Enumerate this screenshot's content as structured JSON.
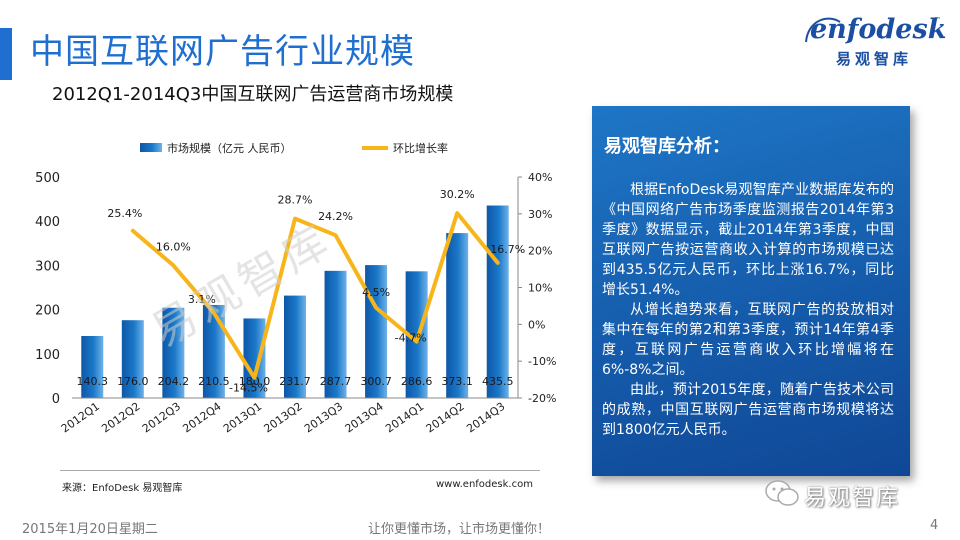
{
  "page": {
    "title": "中国互联网广告行业规模",
    "logo_word": "enfodesk",
    "logo_tm": "™",
    "logo_cn": "易观智库"
  },
  "chart_data": {
    "type": "bar",
    "title": "2012Q1-2014Q3中国互联网广告运营商市场规模",
    "categories": [
      "2012Q1",
      "2012Q2",
      "2012Q3",
      "2012Q4",
      "2013Q1",
      "2013Q2",
      "2013Q3",
      "2013Q4",
      "2014Q1",
      "2014Q2",
      "2014Q3"
    ],
    "series": [
      {
        "name": "市场规模（亿元 人民币）",
        "type": "bar",
        "axis": "left",
        "values": [
          140.3,
          176.0,
          204.2,
          210.5,
          180.0,
          231.7,
          287.7,
          300.7,
          286.6,
          373.1,
          435.5
        ],
        "labels": [
          "140.3",
          "176.0",
          "204.2",
          "210.5",
          "180.0",
          "231.7",
          "287.7",
          "300.7",
          "286.6",
          "373.1",
          "435.5"
        ],
        "color": "#1b78c8"
      },
      {
        "name": "环比增长率",
        "type": "line",
        "axis": "right",
        "values": [
          null,
          25.4,
          16.0,
          3.1,
          -14.5,
          28.7,
          24.2,
          4.5,
          -4.7,
          30.2,
          16.7
        ],
        "labels": [
          null,
          "25.4%",
          "16.0%",
          "3.1%",
          "-14.5%",
          "28.7%",
          "24.2%",
          "4.5%",
          "-4.7%",
          "30.2%",
          "16.7%"
        ],
        "color": "#f7b51b"
      }
    ],
    "ylim": [
      0,
      500
    ],
    "yticks": [
      "0",
      "100",
      "200",
      "300",
      "400",
      "500"
    ],
    "y2lim": [
      -20,
      40
    ],
    "y2ticks": [
      "-20%",
      "-10%",
      "0%",
      "10%",
      "20%",
      "30%",
      "40%"
    ],
    "legend": "top",
    "grid": false
  },
  "watermark": "易观智库",
  "source": "来源：EnfoDesk 易观智库",
  "site": "www.enfodesk.com",
  "panel": {
    "title": "易观智库分析：",
    "paragraphs": [
      "根据EnfoDesk易观智库产业数据库发布的《中国网络广告市场季度监测报告2014年第3季度》数据显示，截止2014年第3季度，中国互联网广告按运营商收入计算的市场规模已达到435.5亿元人民币，环比上涨16.7%，同比增长51.4%。",
      "从增长趋势来看，互联网广告的投放相对集中在每年的第2和第3季度，预计14年第4季度，互联网广告运营商收入环比增幅将在6%-8%之间。",
      "由此，预计2015年度，随着广告技术公司的成熟，中国互联网广告运营商市场规模将达到1800亿元人民币。"
    ]
  },
  "wechat": "易观智库",
  "footer": {
    "date": "2015年1月20日星期二",
    "slogan": "让你更懂市场，让市场更懂你！",
    "page": "4"
  },
  "colors": {
    "accent": "#1f6fd1",
    "bar": "#1b78c8",
    "line": "#f7b51b",
    "panel": "#1565b8"
  }
}
